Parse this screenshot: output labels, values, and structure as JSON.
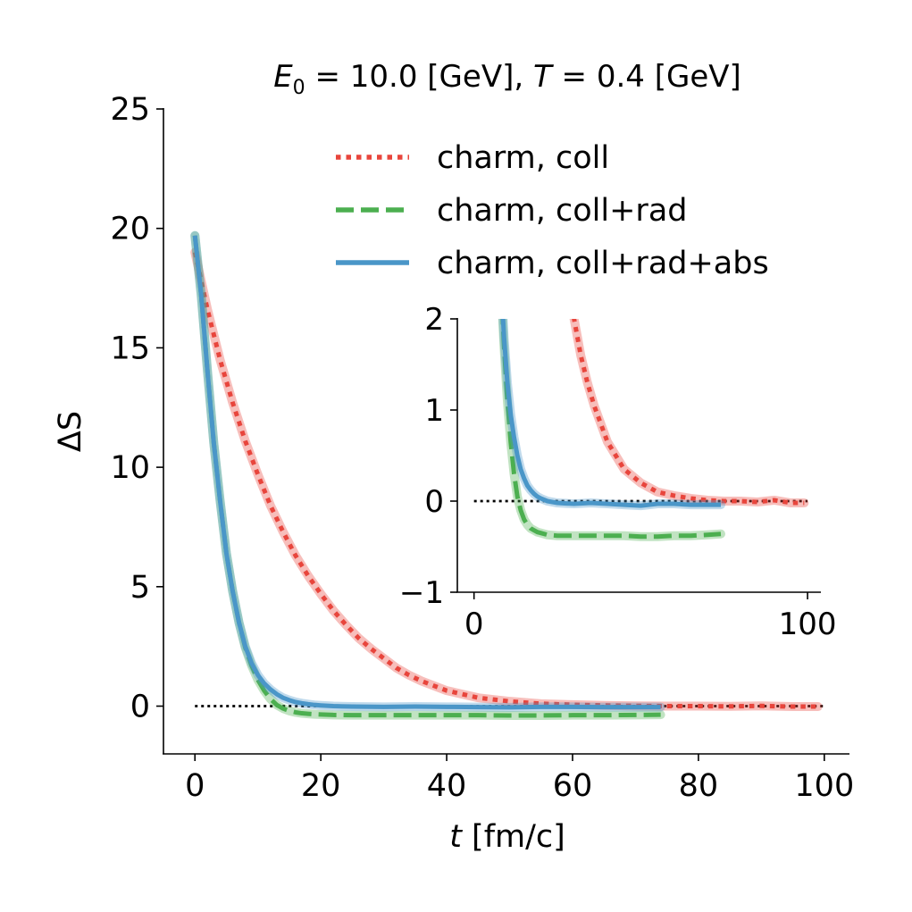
{
  "chart_data": {
    "type": "line",
    "title": {
      "e_symbol": "E",
      "e_subscript": "0",
      "e_value": " = 10.0 [GeV], ",
      "t_symbol": "T",
      "t_value": " = 0.4 [GeV]"
    },
    "xlabel": {
      "symbol": "t",
      "unit": " [fm/c]"
    },
    "ylabel": "ΔS",
    "xlim": [
      -5,
      104
    ],
    "ylim": [
      -2,
      25
    ],
    "xticks": [
      0,
      20,
      40,
      60,
      80,
      100
    ],
    "yticks": [
      0,
      5,
      10,
      15,
      20,
      25
    ],
    "reference_line": {
      "y": 0,
      "x_range": [
        0,
        100
      ],
      "style": "dotted",
      "color": "#000000"
    },
    "legend": {
      "position": "top-right"
    },
    "series": [
      {
        "name": "charm, coll",
        "color": "#e8453c",
        "style": "dotted",
        "x": [
          0,
          2,
          4,
          6,
          8,
          10,
          12,
          14,
          16,
          18,
          20,
          22,
          24,
          26,
          28,
          30,
          32,
          34,
          36,
          38,
          40,
          45,
          50,
          55,
          60,
          65,
          70,
          75,
          80,
          85,
          90,
          95,
          99
        ],
        "y": [
          19.0,
          16.6,
          14.5,
          12.7,
          11.1,
          9.7,
          8.4,
          7.3,
          6.3,
          5.45,
          4.7,
          4.0,
          3.4,
          2.85,
          2.4,
          2.0,
          1.6,
          1.3,
          1.05,
          0.85,
          0.65,
          0.35,
          0.2,
          0.1,
          0.06,
          0.03,
          0.01,
          0.0,
          0.0,
          -0.01,
          0.01,
          -0.02,
          -0.02
        ]
      },
      {
        "name": "charm, coll+rad",
        "color": "#4caf50",
        "style": "dashed",
        "x": [
          0,
          1,
          2,
          3,
          4,
          5,
          6,
          7,
          8,
          9,
          10,
          11,
          12,
          13,
          14,
          15,
          16,
          17,
          18,
          19,
          20,
          22,
          25,
          30,
          35,
          40,
          45,
          50,
          55,
          60,
          65,
          70,
          74
        ],
        "y": [
          19.7,
          17.2,
          14.0,
          11.0,
          8.6,
          6.4,
          4.8,
          3.5,
          2.45,
          1.7,
          1.1,
          0.65,
          0.3,
          0.05,
          -0.1,
          -0.2,
          -0.26,
          -0.3,
          -0.32,
          -0.34,
          -0.35,
          -0.37,
          -0.38,
          -0.38,
          -0.38,
          -0.38,
          -0.38,
          -0.39,
          -0.39,
          -0.38,
          -0.38,
          -0.37,
          -0.36
        ]
      },
      {
        "name": "charm, coll+rad+abs",
        "color": "#4a96c8",
        "style": "solid",
        "x": [
          0,
          1,
          2,
          3,
          4,
          5,
          6,
          7,
          8,
          9,
          10,
          11,
          12,
          13,
          14,
          15,
          16,
          17,
          18,
          19,
          20,
          22,
          25,
          30,
          35,
          40,
          45,
          50,
          55,
          60,
          65,
          70,
          74
        ],
        "y": [
          19.7,
          17.2,
          14.0,
          11.0,
          8.6,
          6.4,
          4.8,
          3.5,
          2.5,
          1.8,
          1.3,
          0.95,
          0.7,
          0.5,
          0.35,
          0.25,
          0.17,
          0.12,
          0.08,
          0.05,
          0.03,
          0.0,
          -0.02,
          -0.03,
          -0.02,
          -0.03,
          -0.04,
          -0.05,
          -0.03,
          -0.03,
          -0.04,
          -0.04,
          -0.04
        ]
      }
    ],
    "inset": {
      "xlim": [
        -5,
        104
      ],
      "ylim": [
        -1,
        2
      ],
      "xticks": [
        0,
        100
      ],
      "yticks": [
        -1,
        0,
        1,
        2
      ],
      "x_axis_label": "",
      "y_axis_label": ""
    }
  }
}
